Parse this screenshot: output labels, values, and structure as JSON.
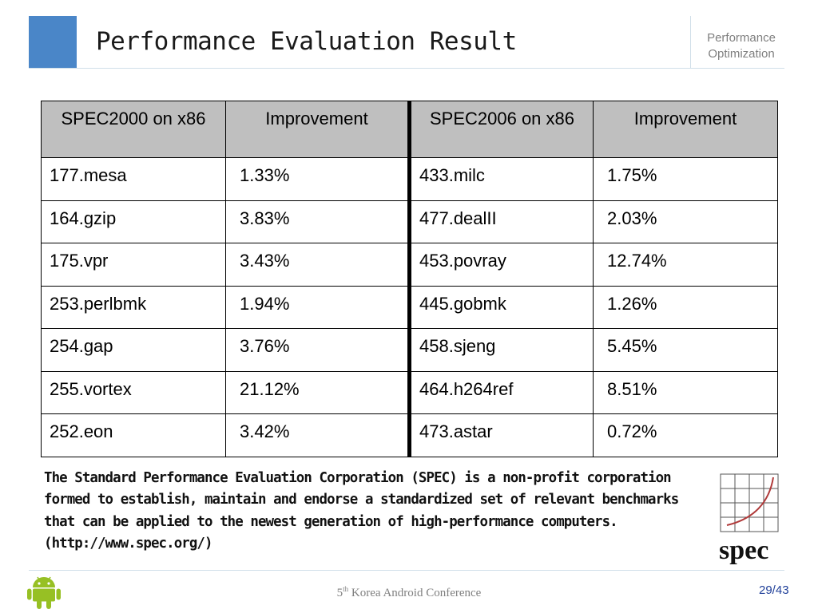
{
  "header": {
    "title": "Performance Evaluation Result",
    "section_line1": "Performance",
    "section_line2": "Optimization"
  },
  "table": {
    "headers": [
      "SPEC2000 on x86",
      "Improvement",
      "SPEC2006 on x86",
      "Improvement"
    ],
    "rows": [
      [
        "177.mesa",
        "1.33%",
        "433.milc",
        "1.75%"
      ],
      [
        "164.gzip",
        "3.83%",
        "477.dealII",
        "2.03%"
      ],
      [
        "175.vpr",
        "3.43%",
        "453.povray",
        "12.74%"
      ],
      [
        "253.perlbmk",
        "1.94%",
        "445.gobmk",
        "1.26%"
      ],
      [
        "254.gap",
        "3.76%",
        "458.sjeng",
        "5.45%"
      ],
      [
        "255.vortex",
        "21.12%",
        "464.h264ref",
        "8.51%"
      ],
      [
        "252.eon",
        "3.42%",
        "473.astar",
        "0.72%"
      ]
    ]
  },
  "description": "The Standard Performance Evaluation Corporation (SPEC) is a non-profit corporation formed to establish, maintain and endorse a standardized set of relevant benchmarks that can be applied to the newest generation of high-performance computers. (http://www.spec.org/)",
  "logo_text": "spec",
  "footer": {
    "conference_number": "5",
    "conference_suffix": "th",
    "conference_name": " Korea Android Conference",
    "page": "29/43"
  },
  "colors": {
    "accent_blue": "#4a86c8",
    "header_fill": "#bfbfbf",
    "android_green": "#97c024",
    "page_number": "#1f3f99"
  }
}
